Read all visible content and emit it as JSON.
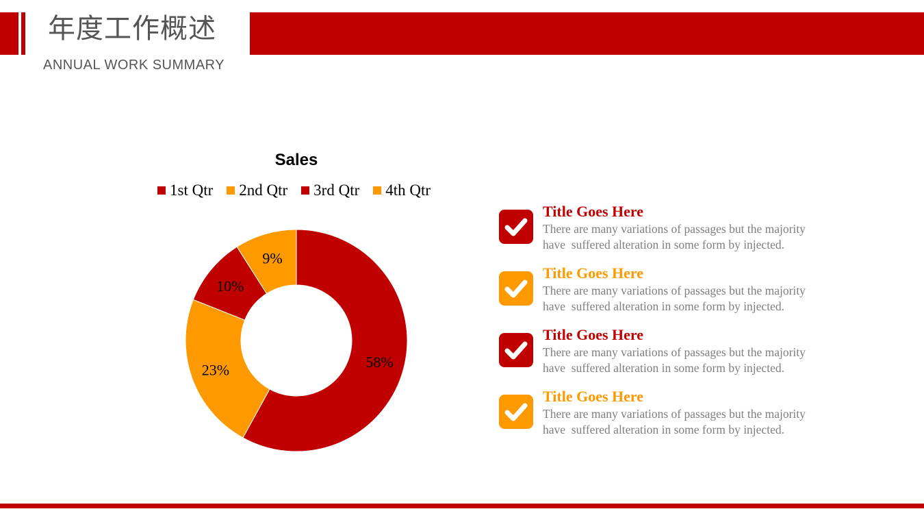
{
  "header": {
    "title_cn": "年度工作概述",
    "title_en": "ANNUAL WORK SUMMARY"
  },
  "colors": {
    "red": "#c00000",
    "orange": "#ff9900",
    "gray_text": "#7f7f7f"
  },
  "chart_data": {
    "type": "pie",
    "variant": "donut",
    "title": "Sales",
    "legend_position": "top",
    "categories": [
      "1st Qtr",
      "2nd Qtr",
      "3rd Qtr",
      "4th Qtr"
    ],
    "values": [
      58,
      23,
      10,
      9
    ],
    "data_labels": [
      "58%",
      "23%",
      "10%",
      "9%"
    ],
    "colors": [
      "#c00000",
      "#ff9900",
      "#c00000",
      "#ff9900"
    ]
  },
  "items": [
    {
      "title": "Title Goes Here",
      "text": "There are many variations of passages but the majority\nhave  suffered alteration in some form by injected.",
      "color": "#c00000",
      "icon": "checkmark-icon"
    },
    {
      "title": "Title Goes Here",
      "text": "There are many variations of passages but the majority\nhave  suffered alteration in some form by injected.",
      "color": "#ff9900",
      "icon": "checkmark-icon"
    },
    {
      "title": "Title Goes Here",
      "text": "There are many variations of passages but the majority\nhave  suffered alteration in some form by injected.",
      "color": "#c00000",
      "icon": "checkmark-icon"
    },
    {
      "title": "Title Goes Here",
      "text": "There are many variations of passages but the majority\nhave  suffered alteration in some form by injected.",
      "color": "#ff9900",
      "icon": "checkmark-icon"
    }
  ]
}
